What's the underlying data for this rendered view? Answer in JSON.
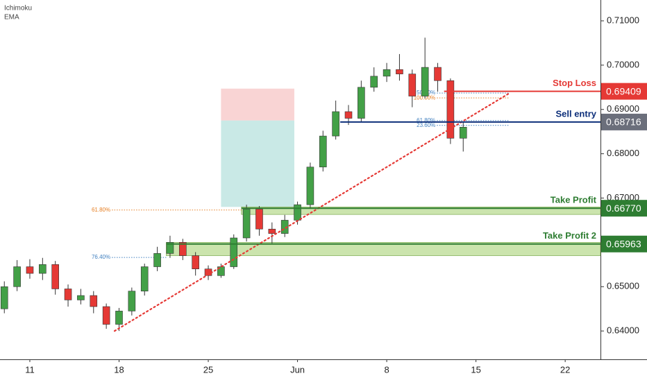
{
  "chart_data": {
    "type": "candlestick",
    "indicators": [
      "Ichimoku",
      "EMA"
    ],
    "xlim": [
      8.66,
      55.77
    ],
    "xticks": [
      11,
      18,
      25,
      {
        "value": 32,
        "label": "Jun"
      },
      8,
      15,
      22
    ],
    "xtick_positions": [
      11,
      18,
      25,
      32,
      39,
      46,
      53
    ],
    "ylim": [
      0.6336,
      0.7147
    ],
    "yticks": [
      {
        "value": 0.64,
        "label": "0.64000"
      },
      {
        "value": 0.65,
        "label": "0.65000"
      },
      {
        "value": 0.66,
        "label": "0.66000"
      },
      {
        "value": 0.67,
        "label": "0.67000"
      },
      {
        "value": 0.68,
        "label": "0.68000"
      },
      {
        "value": 0.69,
        "label": "0.69000"
      },
      {
        "value": 0.7,
        "label": "0.70000"
      },
      {
        "value": 0.71,
        "label": "0.71000"
      }
    ],
    "up_color": "#43a047",
    "down_color": "#e53935",
    "x": [
      9,
      10,
      11,
      12,
      13,
      14,
      15,
      16,
      17,
      18,
      19,
      20,
      21,
      22,
      23,
      24,
      25,
      26,
      27,
      28,
      29,
      30,
      31,
      32,
      33,
      34,
      35,
      36,
      37,
      38,
      39,
      40,
      41,
      42,
      43,
      44,
      45
    ],
    "open": [
      0.645,
      0.65,
      0.6545,
      0.653,
      0.655,
      0.6495,
      0.647,
      0.648,
      0.6455,
      0.6415,
      0.6445,
      0.649,
      0.6545,
      0.6575,
      0.66,
      0.657,
      0.654,
      0.6525,
      0.6545,
      0.661,
      0.6675,
      0.663,
      0.662,
      0.665,
      0.6685,
      0.677,
      0.684,
      0.6895,
      0.688,
      0.695,
      0.6975,
      0.699,
      0.698,
      0.693,
      0.6995,
      0.6965,
      0.6835
    ],
    "high": [
      0.6512,
      0.656,
      0.6562,
      0.6565,
      0.6558,
      0.6505,
      0.6495,
      0.649,
      0.6462,
      0.6452,
      0.6498,
      0.6552,
      0.659,
      0.6615,
      0.6608,
      0.6578,
      0.6548,
      0.6552,
      0.6618,
      0.6685,
      0.6682,
      0.6645,
      0.6662,
      0.6692,
      0.678,
      0.6852,
      0.692,
      0.691,
      0.6965,
      0.6995,
      0.7005,
      0.7025,
      0.699,
      0.7062,
      0.7005,
      0.697,
      0.6872
    ],
    "low": [
      0.644,
      0.649,
      0.6518,
      0.6515,
      0.6482,
      0.6455,
      0.646,
      0.644,
      0.6405,
      0.64,
      0.6435,
      0.648,
      0.6535,
      0.6565,
      0.656,
      0.6525,
      0.6515,
      0.652,
      0.654,
      0.6602,
      0.6615,
      0.6598,
      0.6612,
      0.664,
      0.6678,
      0.676,
      0.6832,
      0.6865,
      0.6872,
      0.694,
      0.6962,
      0.6965,
      0.6905,
      0.6925,
      0.694,
      0.6822,
      0.6805
    ],
    "close": [
      0.65,
      0.6545,
      0.653,
      0.655,
      0.6495,
      0.647,
      0.648,
      0.6455,
      0.6415,
      0.6445,
      0.649,
      0.6545,
      0.6575,
      0.66,
      0.657,
      0.654,
      0.6525,
      0.6545,
      0.661,
      0.6675,
      0.663,
      0.662,
      0.665,
      0.6685,
      0.677,
      0.684,
      0.6895,
      0.688,
      0.695,
      0.6975,
      0.699,
      0.698,
      0.693,
      0.6995,
      0.6965,
      0.6835,
      0.686
    ],
    "position": {
      "x_start": 26.0,
      "x_end": 31.75,
      "stop": 0.6947,
      "entry": 0.6875,
      "target": 0.668
    },
    "trendline": {
      "x": [
        17.65,
        48.7
      ],
      "y": [
        0.64,
        0.6938
      ],
      "color": "#e53935"
    },
    "zones": [
      {
        "x_start": 27.6,
        "from": 0.6663,
        "to": 0.668
      },
      {
        "x_start": 21.7,
        "from": 0.657,
        "to": 0.66
      }
    ],
    "fib_levels": [
      {
        "label": "61.80%",
        "value": 0.6673,
        "x_start": 15.8,
        "x_end": 27.6,
        "color": "#e67e22"
      },
      {
        "label": "76.40%",
        "value": 0.6566,
        "x_start": 15.8,
        "x_end": 21.7,
        "color": "#3f7fbf"
      },
      {
        "label": "50.00%",
        "value": 0.6937,
        "x_start": 41.3,
        "x_end": 48.6,
        "color": "#3f7fbf"
      },
      {
        "label": "100.00%",
        "value": 0.6926,
        "x_start": 41.3,
        "x_end": 48.6,
        "color": "#e67e22"
      },
      {
        "label": "61.80%",
        "value": 0.6875,
        "x_start": 41.3,
        "x_end": 48.6,
        "color": "#3f7fbf"
      },
      {
        "label": "23.60%",
        "value": 0.6864,
        "x_start": 41.3,
        "x_end": 48.6,
        "color": "#3f7fbf"
      }
    ],
    "levels": [
      {
        "name": "Stop Loss",
        "value": 0.69409,
        "value_label": "0.69409",
        "x_start": 43.5,
        "color": "#e53935",
        "tag_color": "#e53935"
      },
      {
        "name": "Sell entry",
        "value": 0.68716,
        "value_label": "0.68716",
        "x_start": 35.35,
        "color": "#0d2f7a",
        "tag_color": "#6b6f7b"
      },
      {
        "name": "Take Profit",
        "value": 0.6677,
        "value_label": "0.66770",
        "x_start": 27.6,
        "color": "#2e7d32",
        "tag_color": "#2e7d32"
      },
      {
        "name": "Take Profit 2",
        "value": 0.65963,
        "value_label": "0.65963",
        "x_start": 21.7,
        "color": "#2e7d32",
        "tag_color": "#2e7d32"
      }
    ]
  }
}
